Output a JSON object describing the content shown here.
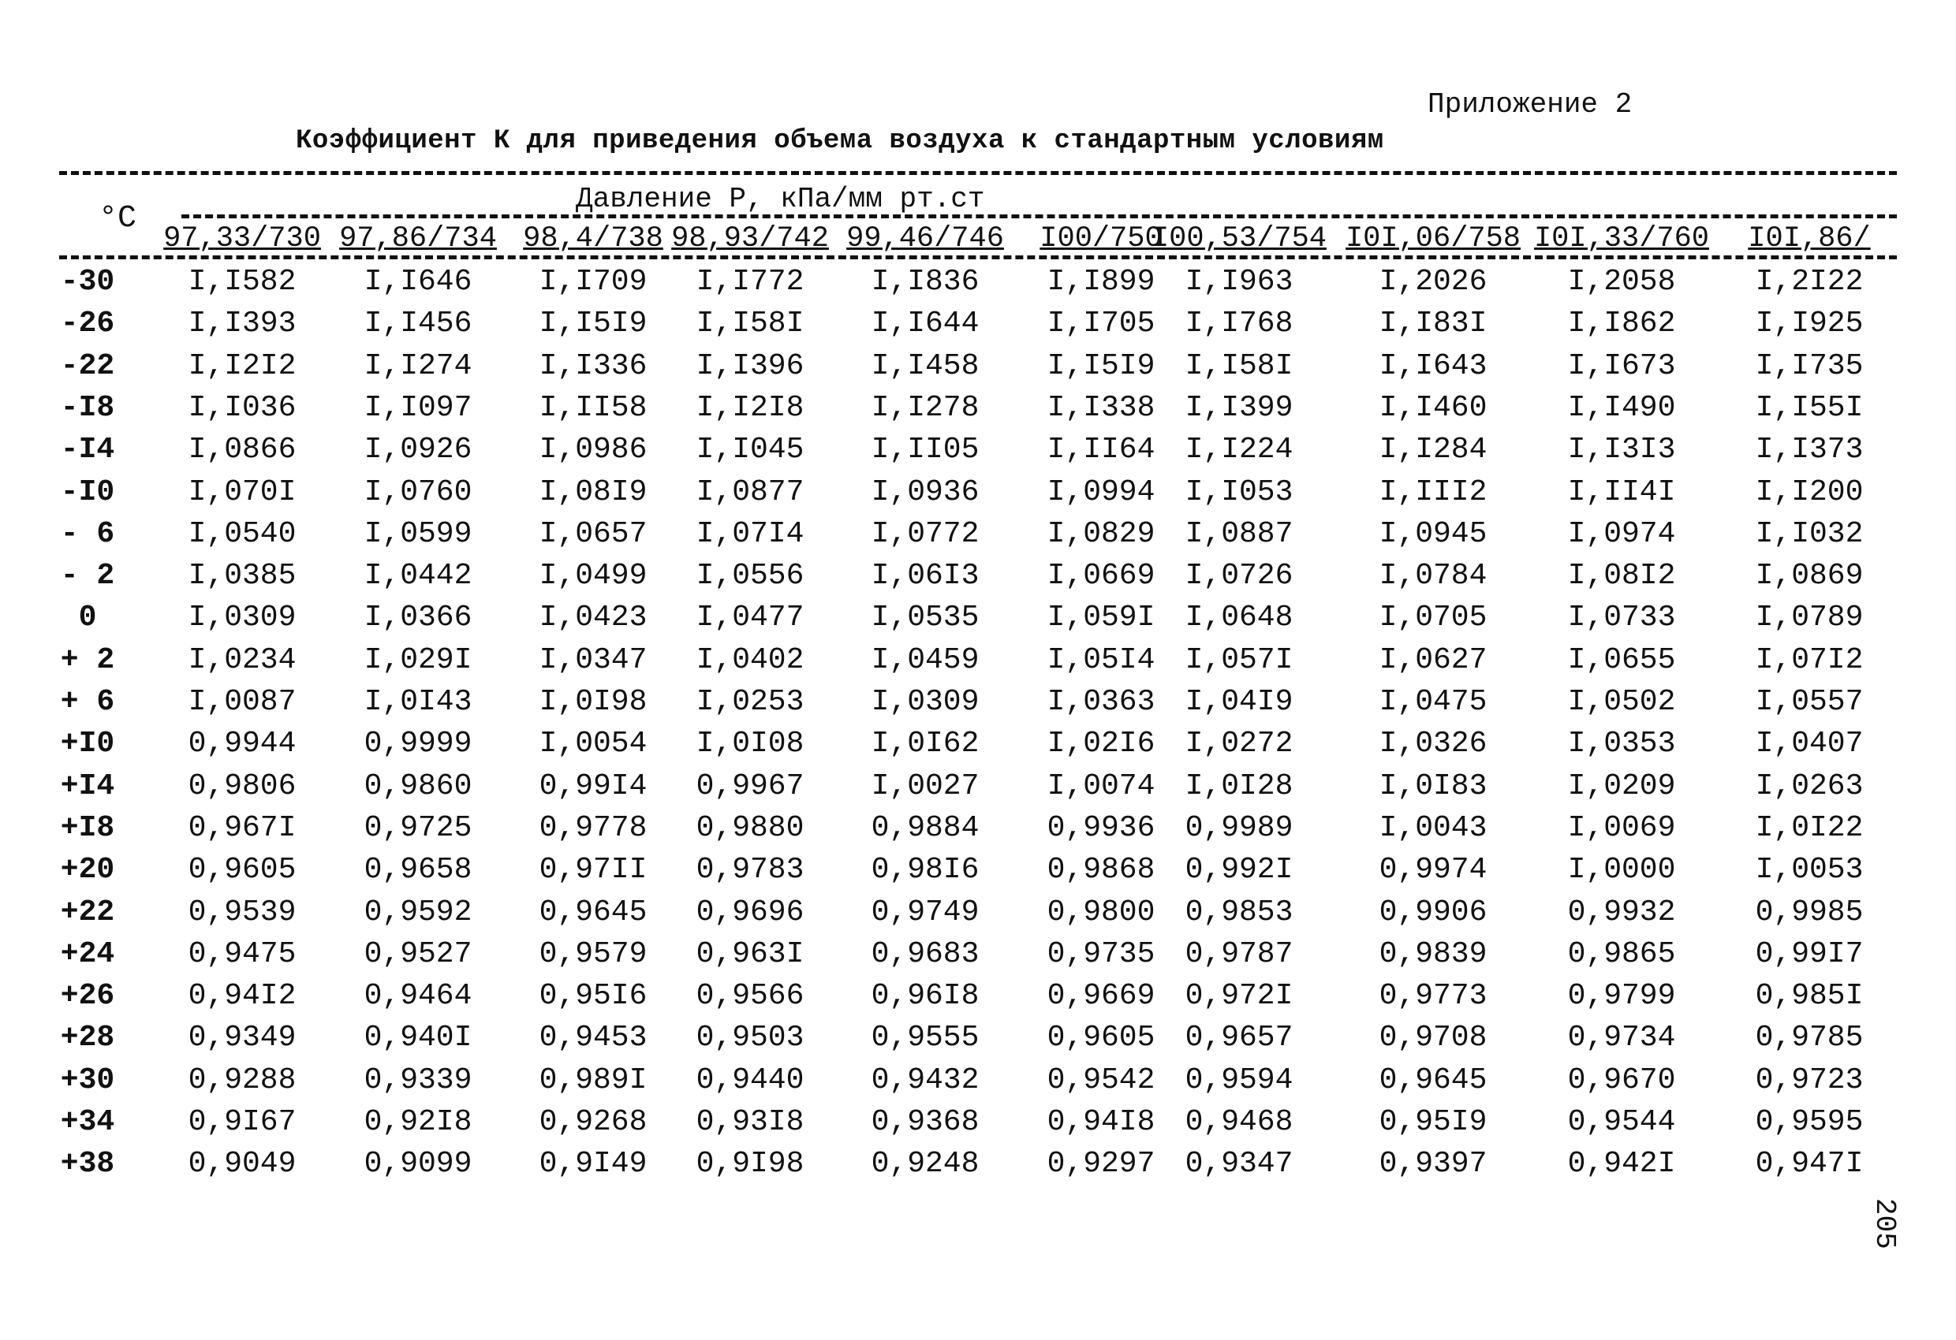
{
  "appendix_label": "Приложение 2",
  "title": "Коэффициент К для приведения объема воздуха к стандартным условиям",
  "table": {
    "temp_header": "°C",
    "pressure_header": "Давление Р, кПа/мм рт.ст",
    "columns": [
      "97,33/730",
      "97,86/734",
      "98,4/738",
      "98,93/742",
      "99,46/746",
      "I00/750",
      "I00,53/754",
      "I0I,06/758",
      "I0I,33/760",
      "I0I,86/"
    ],
    "rows": [
      {
        "t": "-30",
        "v": [
          "I,I582",
          "I,I646",
          "I,I709",
          "I,I772",
          "I,I836",
          "I,I899",
          "I,I963",
          "I,2026",
          "I,2058",
          "I,2I22"
        ]
      },
      {
        "t": "-26",
        "v": [
          "I,I393",
          "I,I456",
          "I,I5I9",
          "I,I58I",
          "I,I644",
          "I,I705",
          "I,I768",
          "I,I83I",
          "I,I862",
          "I,I925"
        ]
      },
      {
        "t": "-22",
        "v": [
          "I,I2I2",
          "I,I274",
          "I,I336",
          "I,I396",
          "I,I458",
          "I,I5I9",
          "I,I58I",
          "I,I643",
          "I,I673",
          "I,I735"
        ]
      },
      {
        "t": "-I8",
        "v": [
          "I,I036",
          "I,I097",
          "I,II58",
          "I,I2I8",
          "I,I278",
          "I,I338",
          "I,I399",
          "I,I460",
          "I,I490",
          "I,I55I"
        ]
      },
      {
        "t": "-I4",
        "v": [
          "I,0866",
          "I,0926",
          "I,0986",
          "I,I045",
          "I,II05",
          "I,II64",
          "I,I224",
          "I,I284",
          "I,I3I3",
          "I,I373"
        ]
      },
      {
        "t": "-I0",
        "v": [
          "I,070I",
          "I,0760",
          "I,08I9",
          "I,0877",
          "I,0936",
          "I,0994",
          "I,I053",
          "I,III2",
          "I,II4I",
          "I,I200"
        ]
      },
      {
        "t": "- 6",
        "v": [
          "I,0540",
          "I,0599",
          "I,0657",
          "I,07I4",
          "I,0772",
          "I,0829",
          "I,0887",
          "I,0945",
          "I,0974",
          "I,I032"
        ]
      },
      {
        "t": "- 2",
        "v": [
          "I,0385",
          "I,0442",
          "I,0499",
          "I,0556",
          "I,06I3",
          "I,0669",
          "I,0726",
          "I,0784",
          "I,08I2",
          "I,0869"
        ]
      },
      {
        "t": "0",
        "v": [
          "I,0309",
          "I,0366",
          "I,0423",
          "I,0477",
          "I,0535",
          "I,059I",
          "I,0648",
          "I,0705",
          "I,0733",
          "I,0789"
        ]
      },
      {
        "t": "+ 2",
        "v": [
          "I,0234",
          "I,029I",
          "I,0347",
          "I,0402",
          "I,0459",
          "I,05I4",
          "I,057I",
          "I,0627",
          "I,0655",
          "I,07I2"
        ]
      },
      {
        "t": "+ 6",
        "v": [
          "I,0087",
          "I,0I43",
          "I,0I98",
          "I,0253",
          "I,0309",
          "I,0363",
          "I,04I9",
          "I,0475",
          "I,0502",
          "I,0557"
        ]
      },
      {
        "t": "+I0",
        "v": [
          "0,9944",
          "0,9999",
          "I,0054",
          "I,0I08",
          "I,0I62",
          "I,02I6",
          "I,0272",
          "I,0326",
          "I,0353",
          "I,0407"
        ]
      },
      {
        "t": "+I4",
        "v": [
          "0,9806",
          "0,9860",
          "0,99I4",
          "0,9967",
          "I,0027",
          "I,0074",
          "I,0I28",
          "I,0I83",
          "I,0209",
          "I,0263"
        ]
      },
      {
        "t": "+I8",
        "v": [
          "0,967I",
          "0,9725",
          "0,9778",
          "0,9880",
          "0,9884",
          "0,9936",
          "0,9989",
          "I,0043",
          "I,0069",
          "I,0I22"
        ]
      },
      {
        "t": "+20",
        "v": [
          "0,9605",
          "0,9658",
          "0,97II",
          "0,9783",
          "0,98I6",
          "0,9868",
          "0,992I",
          "0,9974",
          "I,0000",
          "I,0053"
        ]
      },
      {
        "t": "+22",
        "v": [
          "0,9539",
          "0,9592",
          "0,9645",
          "0,9696",
          "0,9749",
          "0,9800",
          "0,9853",
          "0,9906",
          "0,9932",
          "0,9985"
        ]
      },
      {
        "t": "+24",
        "v": [
          "0,9475",
          "0,9527",
          "0,9579",
          "0,963I",
          "0,9683",
          "0,9735",
          "0,9787",
          "0,9839",
          "0,9865",
          "0,99I7"
        ]
      },
      {
        "t": "+26",
        "v": [
          "0,94I2",
          "0,9464",
          "0,95I6",
          "0,9566",
          "0,96I8",
          "0,9669",
          "0,972I",
          "0,9773",
          "0,9799",
          "0,985I"
        ]
      },
      {
        "t": "+28",
        "v": [
          "0,9349",
          "0,940I",
          "0,9453",
          "0,9503",
          "0,9555",
          "0,9605",
          "0,9657",
          "0,9708",
          "0,9734",
          "0,9785"
        ]
      },
      {
        "t": "+30",
        "v": [
          "0,9288",
          "0,9339",
          "0,989I",
          "0,9440",
          "0,9432",
          "0,9542",
          "0,9594",
          "0,9645",
          "0,9670",
          "0,9723"
        ]
      },
      {
        "t": "+34",
        "v": [
          "0,9I67",
          "0,92I8",
          "0,9268",
          "0,93I8",
          "0,9368",
          "0,94I8",
          "0,9468",
          "0,95I9",
          "0,9544",
          "0,9595"
        ]
      },
      {
        "t": "+38",
        "v": [
          "0,9049",
          "0,9099",
          "0,9I49",
          "0,9I98",
          "0,9248",
          "0,9297",
          "0,9347",
          "0,9397",
          "0,942I",
          "0,947I"
        ]
      }
    ]
  },
  "page_number": "205"
}
